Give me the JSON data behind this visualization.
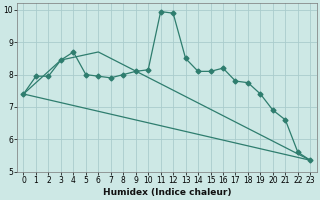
{
  "xlabel": "Humidex (Indice chaleur)",
  "bg_color": "#cde8e5",
  "grid_color": "#aacccc",
  "line_color": "#2e7d6e",
  "xlim": [
    -0.5,
    23.5
  ],
  "ylim": [
    5,
    10.2
  ],
  "yticks": [
    5,
    6,
    7,
    8,
    9,
    10
  ],
  "xticks": [
    0,
    1,
    2,
    3,
    4,
    5,
    6,
    7,
    8,
    9,
    10,
    11,
    12,
    13,
    14,
    15,
    16,
    17,
    18,
    19,
    20,
    21,
    22,
    23
  ],
  "line1_x": [
    0,
    1,
    2,
    3,
    4,
    5,
    6,
    7,
    8,
    9,
    10,
    11,
    12,
    13,
    14,
    15,
    16,
    17,
    18,
    19,
    20,
    21,
    22,
    23
  ],
  "line1_y": [
    7.4,
    7.95,
    7.95,
    8.45,
    8.7,
    8.0,
    7.95,
    7.9,
    8.0,
    8.1,
    8.15,
    9.95,
    9.9,
    8.5,
    8.1,
    8.1,
    8.2,
    7.8,
    7.75,
    7.4,
    6.9,
    6.6,
    5.6,
    5.35
  ],
  "line2_x": [
    0,
    3,
    6,
    23
  ],
  "line2_y": [
    7.4,
    8.45,
    8.7,
    5.35
  ],
  "line3_x": [
    0,
    23
  ],
  "line3_y": [
    7.4,
    5.35
  ]
}
